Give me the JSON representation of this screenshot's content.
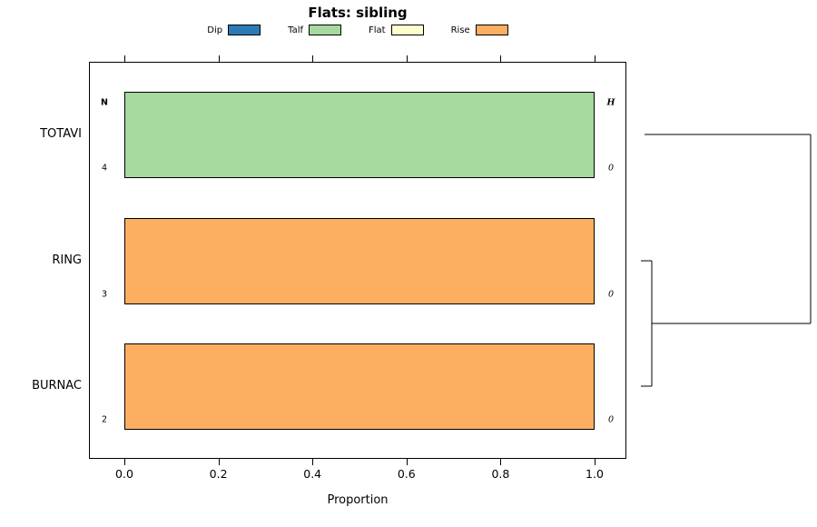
{
  "title": "Flats: sibling",
  "legend": [
    {
      "label": "Dip",
      "color": "#2C7BB6"
    },
    {
      "label": "Talf",
      "color": "#A6D9A0"
    },
    {
      "label": "Flat",
      "color": "#FFFFCC"
    },
    {
      "label": "Rise",
      "color": "#FDAE61"
    }
  ],
  "chart_data": {
    "type": "bar",
    "orientation": "horizontal",
    "stacked": true,
    "title": "Flats: sibling",
    "xlabel": "Proportion",
    "categories": [
      "TOTAVI",
      "RING",
      "BURNAC"
    ],
    "series": [
      {
        "name": "Dip",
        "values": [
          0,
          0,
          0
        ]
      },
      {
        "name": "Talf",
        "values": [
          1.0,
          0,
          0
        ]
      },
      {
        "name": "Flat",
        "values": [
          0,
          0,
          0
        ]
      },
      {
        "name": "Rise",
        "values": [
          0,
          1.0,
          1.0
        ]
      }
    ],
    "n_header": "N",
    "n_values": [
      "4",
      "3",
      "2"
    ],
    "h_header": "H",
    "h_values": [
      "0",
      "0",
      "0"
    ],
    "x_ticks": [
      "0.0",
      "0.2",
      "0.4",
      "0.6",
      "0.8",
      "1.0"
    ],
    "xlim": [
      0,
      1.07
    ],
    "grid": false,
    "legend_position": "top",
    "dendrogram": {
      "present": true,
      "position": "right",
      "clusters": [
        [
          "RING",
          "BURNAC"
        ],
        [
          [
            "RING",
            "BURNAC"
          ],
          "TOTAVI"
        ]
      ]
    }
  }
}
